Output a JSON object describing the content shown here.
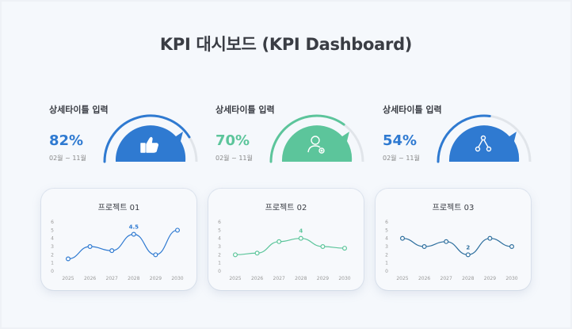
{
  "title": "KPI 대시보드 (KPI Dashboard)",
  "colors": {
    "blue": "#2f7ad1",
    "green": "#5cc59b",
    "navy": "#2e6f9e",
    "track": "#e1e5ea"
  },
  "kpis": [
    {
      "subtitle": "상세타이틀 입력",
      "percent": "82%",
      "value": 0.82,
      "period": "02월 ~ 11월",
      "icon": "thumbs-up-icon",
      "color": "#2f7ad1"
    },
    {
      "subtitle": "상세타이틀 입력",
      "percent": "70%",
      "value": 0.7,
      "period": "02월 ~ 11월",
      "icon": "user-icon",
      "color": "#5cc59b"
    },
    {
      "subtitle": "상세타이틀 입력",
      "percent": "54%",
      "value": 0.54,
      "period": "02월 ~ 11월",
      "icon": "network-icon",
      "color": "#2f7ad1"
    }
  ],
  "chart_data": [
    {
      "type": "line",
      "title": "프로젝트 01",
      "x": [
        "2025",
        "2026",
        "2027",
        "2028",
        "2029",
        "2030"
      ],
      "values": [
        1.5,
        3,
        2.5,
        4.5,
        2,
        5
      ],
      "highlight_index": 3,
      "highlight_label": "4.5",
      "ylim": [
        0,
        6
      ],
      "yticks": [
        "0",
        "1",
        "2",
        "3",
        "4",
        "5",
        "6"
      ],
      "color": "#2f7ad1"
    },
    {
      "type": "line",
      "title": "프로젝트 02",
      "x": [
        "2025",
        "2026",
        "2027",
        "2028",
        "2029",
        "2030"
      ],
      "values": [
        2,
        2.2,
        3.6,
        4,
        3,
        2.8
      ],
      "highlight_index": 3,
      "highlight_label": "4",
      "ylim": [
        0,
        6
      ],
      "yticks": [
        "0",
        "1",
        "2",
        "3",
        "4",
        "5",
        "6"
      ],
      "color": "#5cc59b"
    },
    {
      "type": "line",
      "title": "프로젝트 03",
      "x": [
        "2025",
        "2026",
        "2027",
        "2028",
        "2029",
        "2030"
      ],
      "values": [
        4,
        3,
        3.6,
        2,
        4,
        3
      ],
      "highlight_index": 3,
      "highlight_label": "2",
      "ylim": [
        0,
        6
      ],
      "yticks": [
        "0",
        "1",
        "2",
        "3",
        "4",
        "5",
        "6"
      ],
      "color": "#2e6f9e"
    }
  ]
}
